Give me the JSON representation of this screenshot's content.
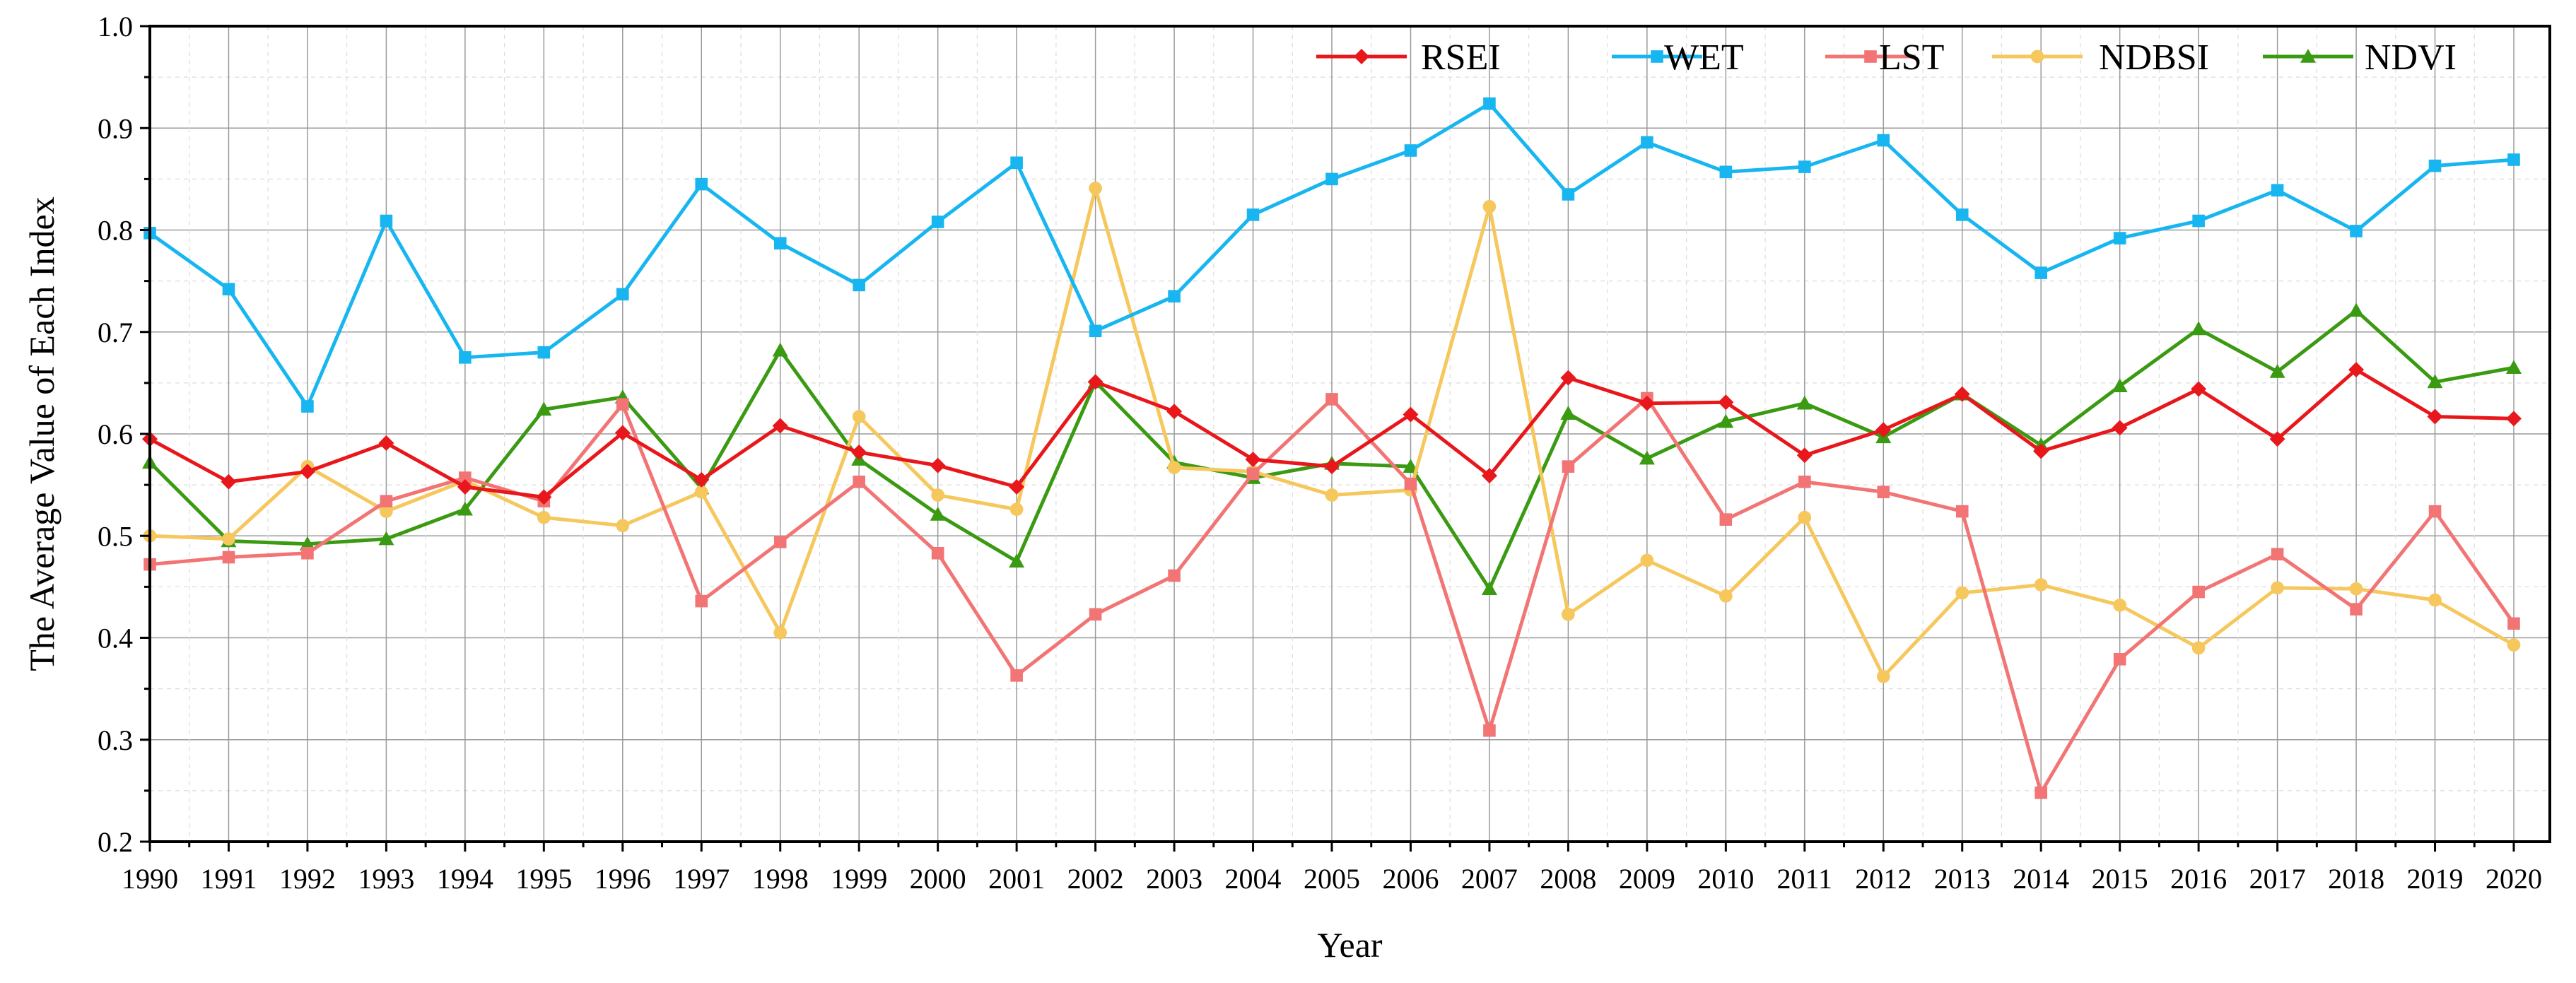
{
  "chart_data": {
    "type": "line",
    "title": "",
    "xlabel": "Year",
    "ylabel": "The Average Value of Each Index",
    "ylim": [
      0.2,
      1.0
    ],
    "yticks": [
      "0.2",
      "0.3",
      "0.4",
      "0.5",
      "0.6",
      "0.7",
      "0.8",
      "0.9",
      "1.0"
    ],
    "grid": true,
    "legend_position": "top-right",
    "categories": [
      "1990",
      "1991",
      "1992",
      "1993",
      "1994",
      "1995",
      "1996",
      "1997",
      "1998",
      "1999",
      "2000",
      "2001",
      "2002",
      "2003",
      "2004",
      "2005",
      "2006",
      "2007",
      "2008",
      "2009",
      "2010",
      "2011",
      "2012",
      "2013",
      "2014",
      "2015",
      "2016",
      "2017",
      "2018",
      "2019",
      "2020"
    ],
    "series": [
      {
        "name": "RSEI",
        "color": "#e8171b",
        "marker": "diamond",
        "values": [
          0.595,
          0.553,
          0.563,
          0.591,
          0.548,
          0.538,
          0.601,
          0.555,
          0.608,
          0.582,
          0.569,
          0.548,
          0.651,
          0.622,
          0.575,
          0.568,
          0.619,
          0.559,
          0.655,
          0.63,
          0.631,
          0.579,
          0.604,
          0.639,
          0.583,
          0.606,
          0.644,
          0.595,
          0.663,
          0.617,
          0.615
        ]
      },
      {
        "name": "WET",
        "color": "#17b6f0",
        "marker": "square",
        "values": [
          0.797,
          0.742,
          0.627,
          0.809,
          0.675,
          0.68,
          0.737,
          0.845,
          0.787,
          0.746,
          0.808,
          0.866,
          0.701,
          0.735,
          0.815,
          0.85,
          0.878,
          0.924,
          0.835,
          0.886,
          0.857,
          0.862,
          0.888,
          0.815,
          0.758,
          0.792,
          0.809,
          0.839,
          0.799,
          0.863,
          0.869
        ]
      },
      {
        "name": "LST",
        "color": "#f27474",
        "marker": "square",
        "values": [
          0.472,
          0.479,
          0.483,
          0.534,
          0.557,
          0.534,
          0.629,
          0.436,
          0.494,
          0.553,
          0.483,
          0.363,
          0.423,
          0.461,
          0.561,
          0.634,
          0.551,
          0.309,
          0.568,
          0.635,
          0.516,
          0.553,
          0.543,
          0.524,
          0.248,
          0.379,
          0.445,
          0.482,
          0.428,
          0.524,
          0.414
        ]
      },
      {
        "name": "NDBSI",
        "color": "#f6c75c",
        "marker": "circle",
        "values": [
          0.5,
          0.497,
          0.568,
          0.524,
          0.554,
          0.518,
          0.51,
          0.543,
          0.405,
          0.617,
          0.54,
          0.526,
          0.841,
          0.567,
          0.563,
          0.54,
          0.545,
          0.823,
          0.423,
          0.476,
          0.441,
          0.518,
          0.362,
          0.444,
          0.452,
          0.432,
          0.39,
          0.449,
          0.448,
          0.437,
          0.393
        ]
      },
      {
        "name": "NDVI",
        "color": "#3a9a12",
        "marker": "triangle",
        "values": [
          0.572,
          0.495,
          0.492,
          0.497,
          0.526,
          0.624,
          0.636,
          0.547,
          0.682,
          0.575,
          0.521,
          0.475,
          0.651,
          0.572,
          0.557,
          0.571,
          0.568,
          0.448,
          0.62,
          0.576,
          0.612,
          0.63,
          0.597,
          0.639,
          0.589,
          0.647,
          0.703,
          0.661,
          0.721,
          0.651,
          0.665
        ]
      }
    ]
  }
}
